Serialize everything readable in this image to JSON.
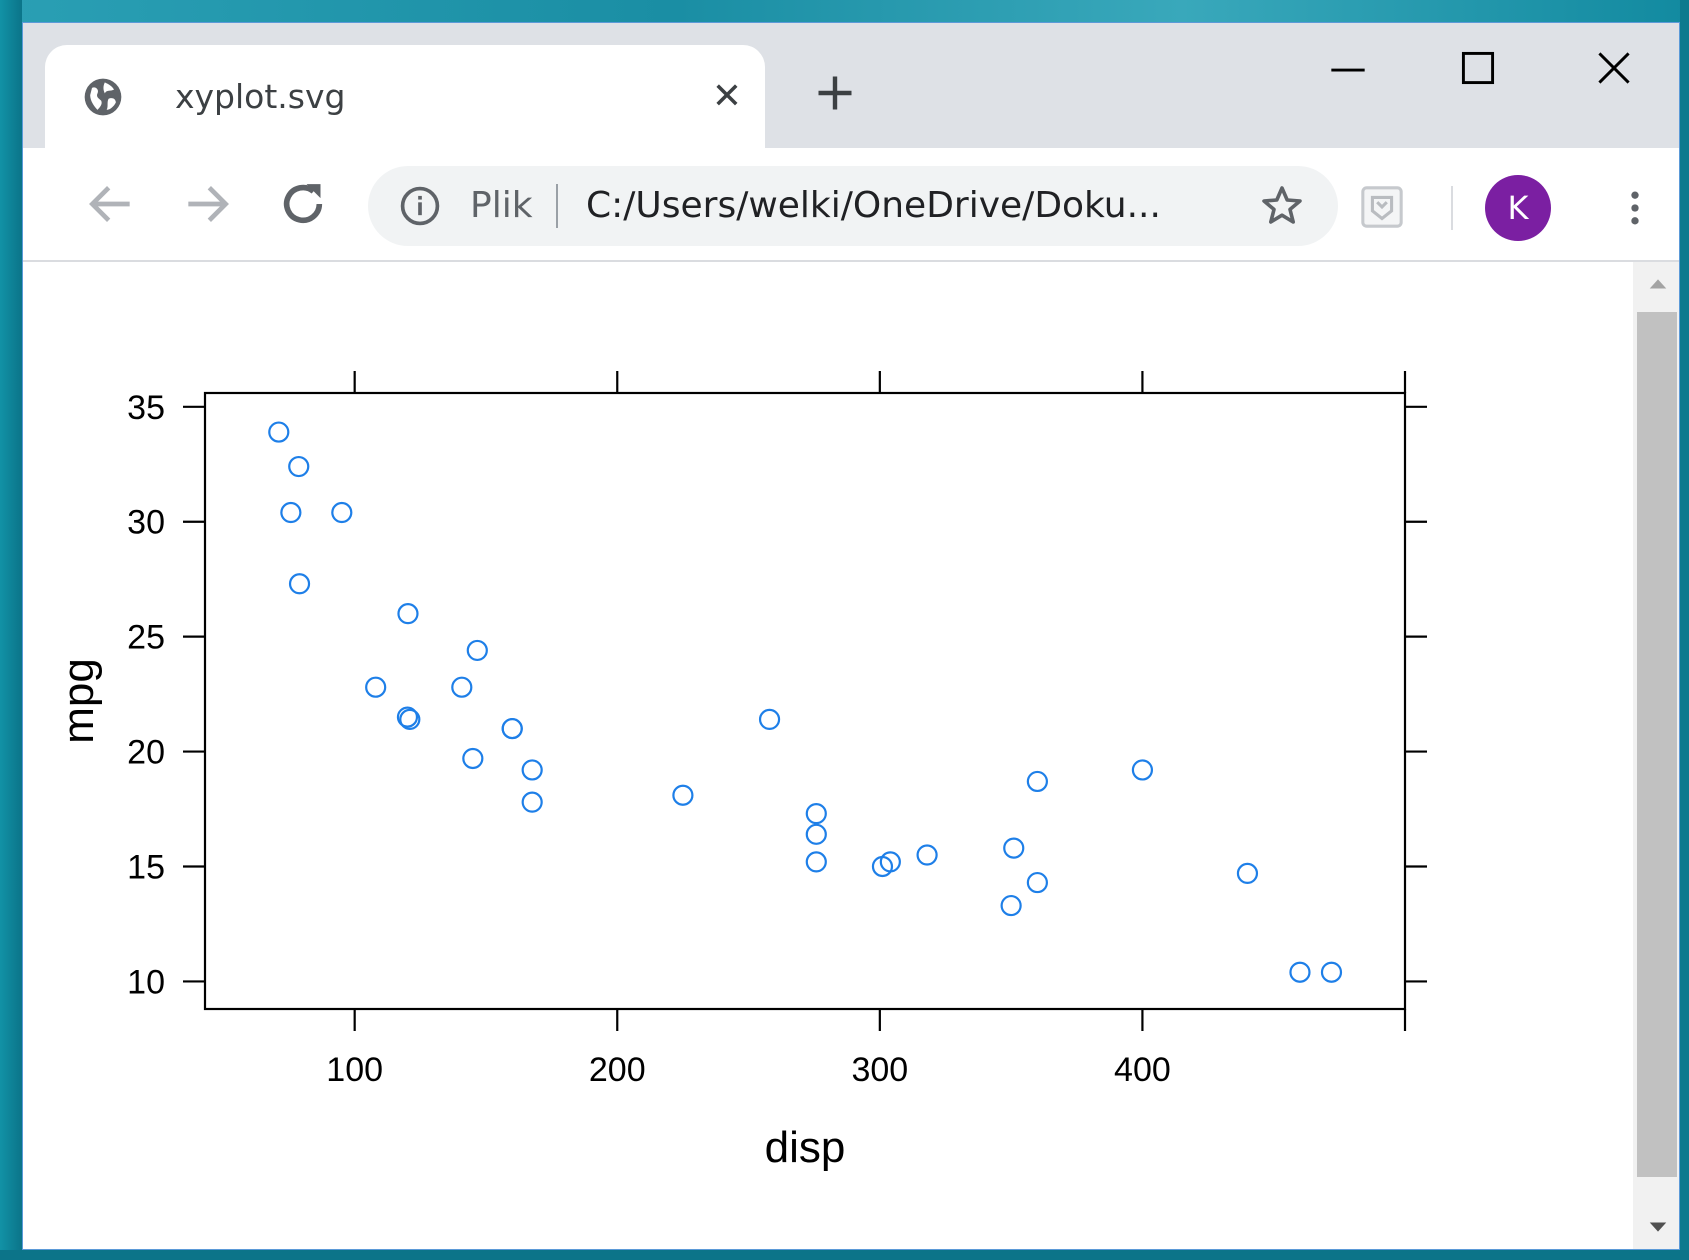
{
  "browser": {
    "tab": {
      "title": "xyplot.svg",
      "close_glyph": "✕"
    },
    "omnibox": {
      "scheme_label": "Plik",
      "url": "C:/Users/welki/OneDrive/Doku..."
    },
    "profile": {
      "initial": "K",
      "color": "#7b1fa2"
    },
    "icons": [
      "globe-icon",
      "close-icon",
      "plus-icon",
      "minimize-icon",
      "maximize-icon",
      "window-close-icon",
      "back-arrow-icon",
      "forward-arrow-icon",
      "reload-icon",
      "info-icon",
      "star-icon",
      "extension-icon",
      "kebab-menu-icon",
      "scroll-up-arrow-icon",
      "scroll-down-arrow-icon"
    ]
  },
  "chart_data": {
    "type": "scatter",
    "title": "",
    "xlabel": "disp",
    "ylabel": "mpg",
    "xlim": [
      43,
      500
    ],
    "ylim": [
      8.8,
      35.6
    ],
    "x_ticks": [
      100,
      200,
      300,
      400
    ],
    "y_ticks": [
      10,
      15,
      20,
      25,
      30,
      35
    ],
    "marker": "open-circle",
    "color": "#1e7fe8",
    "grid": false,
    "series": [
      {
        "x": [
          160,
          160,
          108,
          258,
          360,
          225,
          360,
          146.7,
          140.8,
          167.6,
          167.6,
          275.8,
          275.8,
          275.8,
          472,
          460,
          440,
          78.7,
          75.7,
          71.1,
          120.1,
          318,
          304,
          350,
          400,
          79,
          120.3,
          95.1,
          351,
          145,
          301,
          121
        ],
        "y": [
          21,
          21,
          22.8,
          21.4,
          18.7,
          18.1,
          14.3,
          24.4,
          22.8,
          19.2,
          17.8,
          16.4,
          17.3,
          15.2,
          10.4,
          10.4,
          14.7,
          32.4,
          30.4,
          33.9,
          21.5,
          15.5,
          15.2,
          13.3,
          19.2,
          27.3,
          26,
          30.4,
          15.8,
          19.7,
          15,
          21.4
        ]
      }
    ]
  }
}
